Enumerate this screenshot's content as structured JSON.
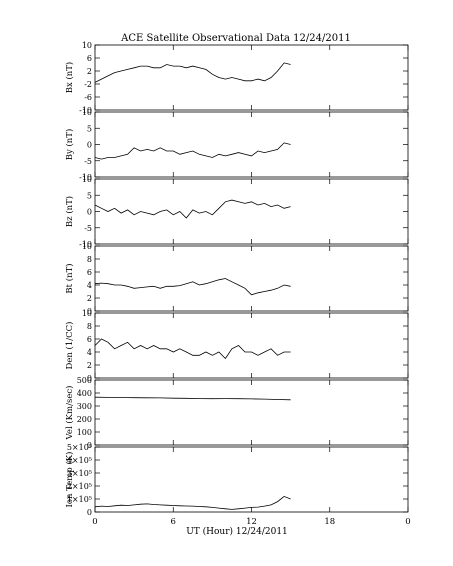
{
  "title": "ACE Satellite Observational Data   12/24/2011",
  "xlabel": "UT (Hour)   12/24/2011",
  "chart_data": [
    {
      "type": "line",
      "ylabel": "Bx (nT)",
      "ylim": [
        -10,
        10
      ],
      "yticks": [
        "10",
        "6",
        "2",
        "-2",
        "-6",
        "-10"
      ],
      "ytick_values": [
        10,
        6,
        2,
        -2,
        -6,
        -10
      ],
      "x": [
        0,
        0.5,
        1,
        1.5,
        2,
        2.5,
        3,
        3.5,
        4,
        4.5,
        5,
        5.5,
        6,
        6.5,
        7,
        7.5,
        8,
        8.5,
        9,
        9.5,
        10,
        10.5,
        11,
        11.5,
        12,
        12.5,
        13,
        13.5,
        14,
        14.5,
        15
      ],
      "y": [
        -1.5,
        -0.5,
        0.5,
        1.5,
        2,
        2.5,
        3,
        3.5,
        3.5,
        3,
        3,
        4,
        3.5,
        3.5,
        3,
        3.5,
        3,
        2.5,
        1,
        0,
        -0.5,
        0,
        -0.5,
        -1,
        -1,
        -0.5,
        -1,
        0,
        2,
        4.5,
        4
      ]
    },
    {
      "type": "line",
      "ylabel": "By (nT)",
      "ylim": [
        -10,
        10
      ],
      "yticks": [
        "10",
        "5",
        "0",
        "-5",
        "-10"
      ],
      "ytick_values": [
        10,
        5,
        0,
        -5,
        -10
      ],
      "x": [
        0,
        0.5,
        1,
        1.5,
        2,
        2.5,
        3,
        3.5,
        4,
        4.5,
        5,
        5.5,
        6,
        6.5,
        7,
        7.5,
        8,
        8.5,
        9,
        9.5,
        10,
        10.5,
        11,
        11.5,
        12,
        12.5,
        13,
        13.5,
        14,
        14.5,
        15
      ],
      "y": [
        -4,
        -4.5,
        -4,
        -4,
        -3.5,
        -3,
        -1,
        -2,
        -1.5,
        -2,
        -1,
        -2,
        -2,
        -3,
        -2.5,
        -2,
        -3,
        -3.5,
        -4,
        -3,
        -3.5,
        -3,
        -2.5,
        -3,
        -3.5,
        -2,
        -2.5,
        -2,
        -1.5,
        0.5,
        0
      ]
    },
    {
      "type": "line",
      "ylabel": "Bz (nT)",
      "ylim": [
        -10,
        10
      ],
      "yticks": [
        "10",
        "5",
        "0",
        "-5",
        "-10"
      ],
      "ytick_values": [
        10,
        5,
        0,
        -5,
        -10
      ],
      "x": [
        0,
        0.5,
        1,
        1.5,
        2,
        2.5,
        3,
        3.5,
        4,
        4.5,
        5,
        5.5,
        6,
        6.5,
        7,
        7.5,
        8,
        8.5,
        9,
        9.5,
        10,
        10.5,
        11,
        11.5,
        12,
        12.5,
        13,
        13.5,
        14,
        14.5,
        15
      ],
      "y": [
        2,
        1,
        0,
        1,
        -0.5,
        0.5,
        -1,
        0,
        -0.5,
        -1,
        0,
        0.5,
        -1,
        0,
        -2,
        0.5,
        -0.5,
        0,
        -1,
        1,
        3,
        3.5,
        3,
        2.5,
        3,
        2,
        2.5,
        1.5,
        2,
        1,
        1.5
      ]
    },
    {
      "type": "line",
      "ylabel": "Bt (nT)",
      "ylim": [
        0,
        10
      ],
      "yticks": [
        "10",
        "8",
        "6",
        "4",
        "2",
        "0"
      ],
      "ytick_values": [
        10,
        8,
        6,
        4,
        2,
        0
      ],
      "x": [
        0,
        0.5,
        1,
        1.5,
        2,
        2.5,
        3,
        3.5,
        4,
        4.5,
        5,
        5.5,
        6,
        6.5,
        7,
        7.5,
        8,
        8.5,
        9,
        9.5,
        10,
        10.5,
        11,
        11.5,
        12,
        12.5,
        13,
        13.5,
        14,
        14.5,
        15
      ],
      "y": [
        4.2,
        4.3,
        4.2,
        4,
        4,
        3.8,
        3.5,
        3.6,
        3.7,
        3.8,
        3.5,
        3.8,
        3.8,
        3.9,
        4.2,
        4.5,
        4,
        4.2,
        4.5,
        4.8,
        5,
        4.5,
        4,
        3.5,
        2.5,
        2.8,
        3,
        3.2,
        3.5,
        4,
        3.8
      ]
    },
    {
      "type": "line",
      "ylabel": "Den (1/CC)",
      "ylim": [
        0,
        10
      ],
      "yticks": [
        "10",
        "8",
        "6",
        "4",
        "2",
        "0"
      ],
      "ytick_values": [
        10,
        8,
        6,
        4,
        2,
        0
      ],
      "x": [
        0,
        0.5,
        1,
        1.5,
        2,
        2.5,
        3,
        3.5,
        4,
        4.5,
        5,
        5.5,
        6,
        6.5,
        7,
        7.5,
        8,
        8.5,
        9,
        9.5,
        10,
        10.5,
        11,
        11.5,
        12,
        12.5,
        13,
        13.5,
        14,
        14.5,
        15
      ],
      "y": [
        5,
        6,
        5.5,
        4.5,
        5,
        5.5,
        4.5,
        5,
        4.5,
        5,
        4.5,
        4.5,
        4,
        4.5,
        4,
        3.5,
        3.5,
        4,
        3.5,
        4,
        3,
        4.5,
        5,
        4,
        4,
        3.5,
        4,
        4.5,
        3.5,
        4,
        4
      ]
    },
    {
      "type": "line",
      "ylabel": "Vel (Km/sec)",
      "ylim": [
        0,
        500
      ],
      "yticks": [
        "500",
        "400",
        "300",
        "200",
        "100",
        "0"
      ],
      "ytick_values": [
        500,
        400,
        300,
        200,
        100,
        0
      ],
      "x": [
        0,
        1,
        2,
        3,
        4,
        5,
        6,
        7,
        8,
        9,
        10,
        11,
        12,
        13,
        14,
        15
      ],
      "y": [
        368,
        366,
        365,
        364,
        363,
        362,
        360,
        359,
        357,
        356,
        357,
        356,
        355,
        353,
        350,
        348
      ]
    },
    {
      "type": "line",
      "ylabel": "Ion Temp (K)",
      "ylim": [
        0,
        500000
      ],
      "yticks": [
        "5×10⁵",
        "4×10⁵",
        "3×10⁵",
        "2×10⁵",
        "1×10⁵",
        "0"
      ],
      "ytick_values": [
        500000,
        400000,
        300000,
        200000,
        100000,
        0
      ],
      "x": [
        0,
        0.5,
        1,
        1.5,
        2,
        2.5,
        3,
        3.5,
        4,
        4.5,
        5,
        5.5,
        6,
        6.5,
        7,
        7.5,
        8,
        8.5,
        9,
        9.5,
        10,
        10.5,
        11,
        11.5,
        12,
        12.5,
        13,
        13.5,
        14,
        14.5,
        15
      ],
      "y": [
        40000,
        45000,
        42000,
        48000,
        52000,
        50000,
        55000,
        60000,
        62000,
        58000,
        55000,
        52000,
        50000,
        48000,
        46000,
        45000,
        42000,
        40000,
        35000,
        30000,
        25000,
        20000,
        25000,
        30000,
        35000,
        38000,
        45000,
        55000,
        80000,
        120000,
        100000
      ]
    }
  ],
  "xaxis": {
    "xlim": [
      0,
      24
    ],
    "ticks": [
      "0",
      "6",
      "12",
      "18",
      "0"
    ],
    "tick_values": [
      0,
      6,
      12,
      18,
      24
    ]
  }
}
